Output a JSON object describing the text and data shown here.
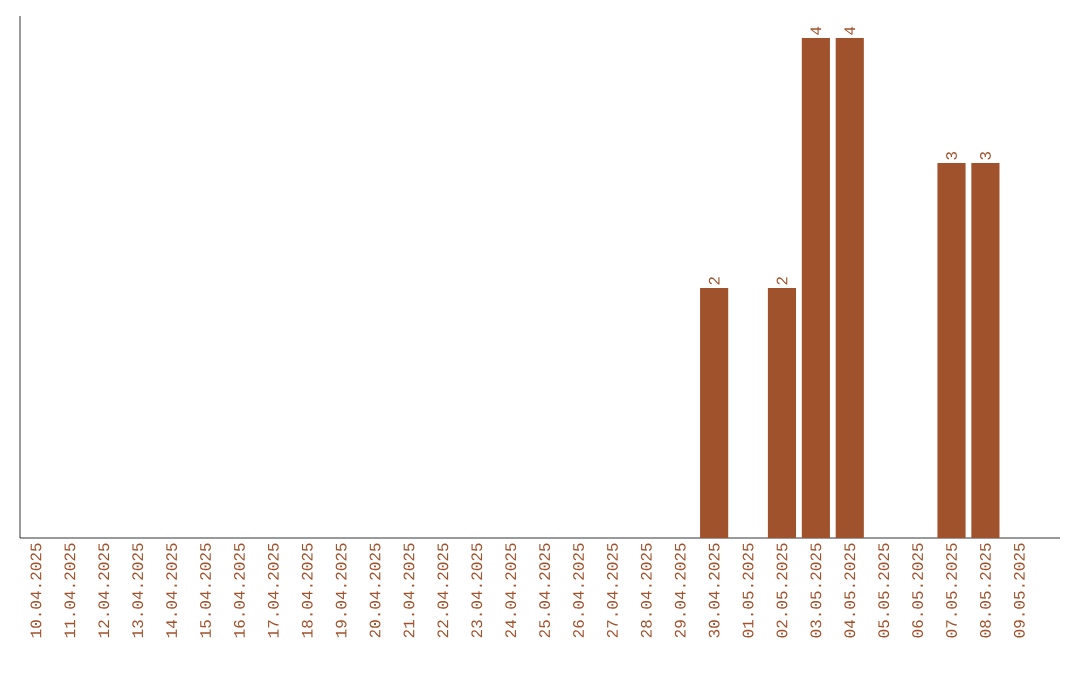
{
  "chart_data": {
    "type": "bar",
    "categories": [
      "10.04.2025",
      "11.04.2025",
      "12.04.2025",
      "13.04.2025",
      "14.04.2025",
      "15.04.2025",
      "16.04.2025",
      "17.04.2025",
      "18.04.2025",
      "19.04.2025",
      "20.04.2025",
      "21.04.2025",
      "22.04.2025",
      "23.04.2025",
      "24.04.2025",
      "25.04.2025",
      "26.04.2025",
      "27.04.2025",
      "28.04.2025",
      "29.04.2025",
      "30.04.2025",
      "01.05.2025",
      "02.05.2025",
      "03.05.2025",
      "04.05.2025",
      "05.05.2025",
      "06.05.2025",
      "07.05.2025",
      "08.05.2025",
      "09.05.2025"
    ],
    "values": [
      null,
      null,
      null,
      null,
      null,
      null,
      null,
      null,
      null,
      null,
      null,
      null,
      null,
      null,
      null,
      null,
      null,
      null,
      null,
      null,
      2,
      null,
      2,
      4,
      4,
      null,
      null,
      3,
      3,
      null
    ],
    "data_labels": true,
    "color": "#a0522d",
    "grid": false
  }
}
